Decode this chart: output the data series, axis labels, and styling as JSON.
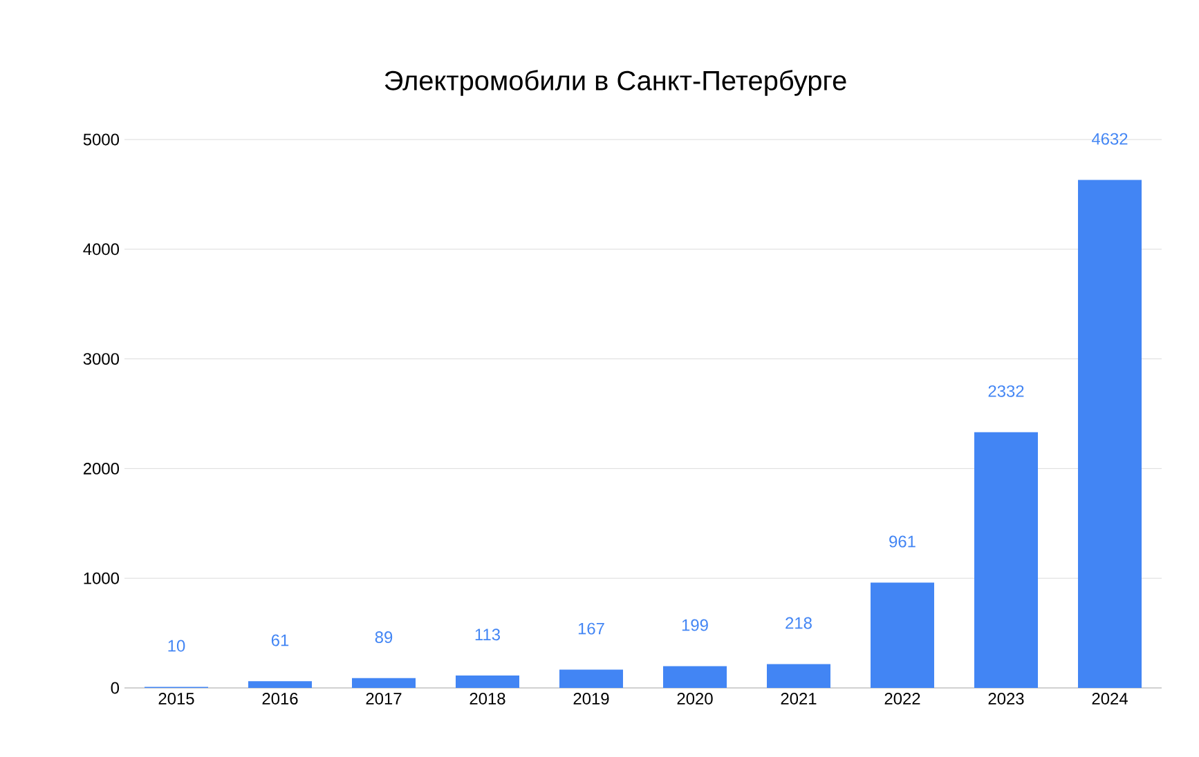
{
  "chart_data": {
    "type": "bar",
    "title": "Электромобили в Санкт-Петербурге",
    "categories": [
      "2015",
      "2016",
      "2017",
      "2018",
      "2019",
      "2020",
      "2021",
      "2022",
      "2023",
      "2024"
    ],
    "values": [
      10,
      61,
      89,
      113,
      167,
      199,
      218,
      961,
      2332,
      4632
    ],
    "color": "#4285f4",
    "ylim": [
      0,
      5000
    ],
    "yticks": [
      0,
      1000,
      2000,
      3000,
      4000,
      5000
    ],
    "grid": "y",
    "data_labels": true
  }
}
